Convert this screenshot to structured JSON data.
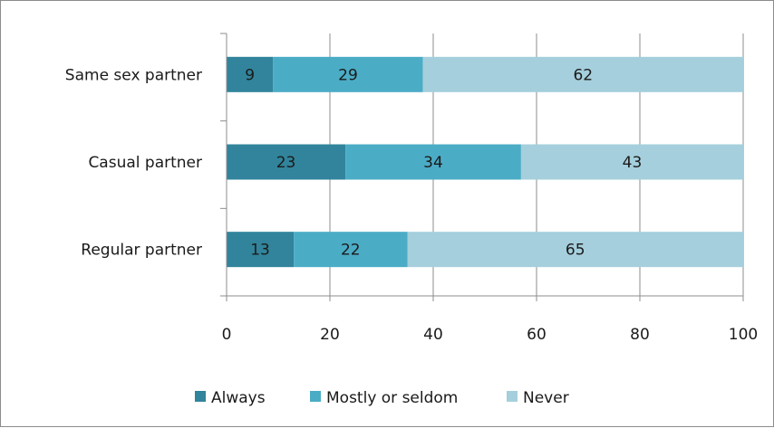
{
  "chart_data": {
    "type": "bar",
    "orientation": "horizontal",
    "stacked": true,
    "categories": [
      "Same sex partner",
      "Casual partner",
      "Regular partner"
    ],
    "series": [
      {
        "name": "Always",
        "values": [
          9,
          23,
          13
        ],
        "color": "#31849b"
      },
      {
        "name": "Mostly or seldom",
        "values": [
          29,
          34,
          22
        ],
        "color": "#4bacc6"
      },
      {
        "name": "Never",
        "values": [
          62,
          43,
          65
        ],
        "color": "#a5cfdc"
      }
    ],
    "xlim": [
      0,
      100
    ],
    "x_ticks": [
      "0",
      "20",
      "40",
      "60",
      "80",
      "100"
    ],
    "grid": "vertical",
    "legend": "bottom",
    "title": "",
    "xlabel": "",
    "ylabel": ""
  }
}
